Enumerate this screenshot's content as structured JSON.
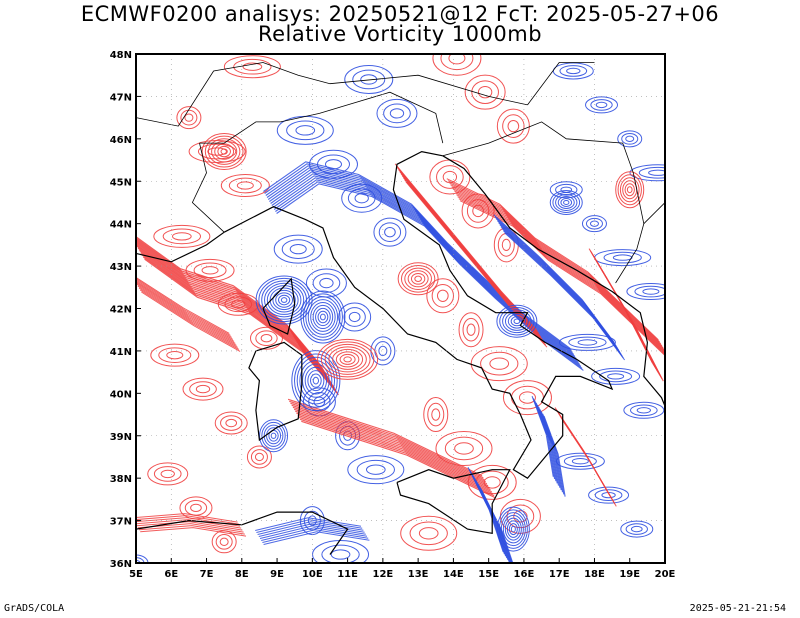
{
  "title_line1": "ECMWF0200 analisys: 20250521@12 FcT: 2025-05-27+06",
  "title_line2": "Relative Vorticity 1000mb",
  "footer_left": "GrADS/COLA",
  "footer_right": "2025-05-21-21:54",
  "colors": {
    "positive": "#f04040",
    "negative": "#3050e0",
    "coast": "#000000",
    "frame": "#000000"
  },
  "map": {
    "lon_range": [
      5,
      20
    ],
    "lat_range": [
      36,
      48
    ],
    "lon_ticks": [
      "5E",
      "6E",
      "7E",
      "8E",
      "9E",
      "10E",
      "11E",
      "12E",
      "13E",
      "14E",
      "15E",
      "16E",
      "17E",
      "18E",
      "19E",
      "20E"
    ],
    "lat_ticks": [
      "36N",
      "37N",
      "38N",
      "39N",
      "40N",
      "41N",
      "42N",
      "43N",
      "44N",
      "45N",
      "46N",
      "47N",
      "48N"
    ]
  }
}
